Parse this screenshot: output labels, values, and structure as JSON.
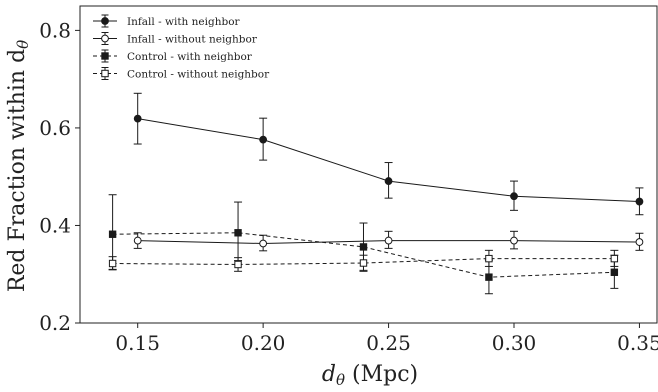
{
  "chart_data": {
    "type": "line",
    "xlabel": "dθ (Mpc)",
    "xlabel_main": "d",
    "xlabel_sub": "θ",
    "xlabel_unit": " (Mpc)",
    "ylabel": "Red Fraction within dθ",
    "ylabel_main": "Red Fraction within d",
    "ylabel_sub": "θ",
    "xlim": [
      0.127,
      0.357
    ],
    "ylim": [
      0.2,
      0.85
    ],
    "xticks": [
      "0.15",
      "0.20",
      "0.25",
      "0.30",
      "0.35"
    ],
    "yticks": [
      "0.2",
      "0.4",
      "0.6",
      "0.8"
    ],
    "grid": false,
    "legend_position": "top-left",
    "series": [
      {
        "name": "Infall - with neighbor",
        "style": "solid",
        "marker": "filled-circle",
        "color": "#1a1a1a",
        "x": [
          0.15,
          0.2,
          0.25,
          0.3,
          0.35
        ],
        "y": [
          0.619,
          0.576,
          0.491,
          0.46,
          0.449
        ],
        "err_low": [
          0.567,
          0.534,
          0.456,
          0.431,
          0.422
        ],
        "err_high": [
          0.671,
          0.62,
          0.529,
          0.491,
          0.477
        ]
      },
      {
        "name": "Infall - without neighbor",
        "style": "solid",
        "marker": "open-circle",
        "color": "#1a1a1a",
        "x": [
          0.15,
          0.2,
          0.25,
          0.3,
          0.35
        ],
        "y": [
          0.369,
          0.363,
          0.369,
          0.369,
          0.366
        ],
        "err_low": [
          0.353,
          0.348,
          0.353,
          0.352,
          0.349
        ],
        "err_high": [
          0.385,
          0.38,
          0.388,
          0.388,
          0.384
        ]
      },
      {
        "name": "Control - with neighbor",
        "style": "dashed",
        "marker": "filled-square",
        "color": "#1a1a1a",
        "x": [
          0.14,
          0.19,
          0.24,
          0.29,
          0.34
        ],
        "y": [
          0.382,
          0.385,
          0.356,
          0.294,
          0.304
        ],
        "err_low": [
          0.31,
          0.328,
          0.306,
          0.26,
          0.271
        ],
        "err_high": [
          0.463,
          0.448,
          0.405,
          0.329,
          0.339
        ]
      },
      {
        "name": "Control - without neighbor",
        "style": "dashed",
        "marker": "open-square",
        "color": "#1a1a1a",
        "x": [
          0.14,
          0.19,
          0.24,
          0.29,
          0.34
        ],
        "y": [
          0.322,
          0.32,
          0.323,
          0.332,
          0.332
        ],
        "err_low": [
          0.309,
          0.306,
          0.308,
          0.316,
          0.316
        ],
        "err_high": [
          0.336,
          0.334,
          0.339,
          0.349,
          0.349
        ]
      }
    ]
  }
}
